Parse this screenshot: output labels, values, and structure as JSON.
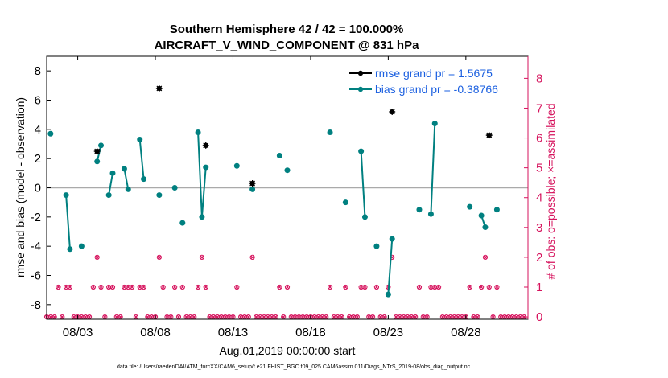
{
  "chart_data": {
    "type": "line",
    "title_line1": "Southern Hemisphere 42 / 42 = 100.000%",
    "title_line2": "AIRCRAFT_V_WIND_COMPONENT @ 831 hPa",
    "xlabel": "Aug.01,2019 00:00:00 start",
    "ylabel": "rmse and bias (model - observation)",
    "y2label": "# of obs: o=possible; ×=assimilated",
    "footnote": "data file: /Users/raeder/DAI/ATM_forcXX/CAM6_setup/f.e21.FHIST_BGC.f09_025.CAM6assim.011/Diags_NTrS_2019-08/obs_diag_output.nc",
    "xlim": [
      1.0,
      32.0
    ],
    "ylim": [
      -9,
      9
    ],
    "y2lim": [
      -0.0786,
      8.7381
    ],
    "x_ticks": [
      3,
      8,
      13,
      18,
      23,
      28
    ],
    "x_tick_labels": [
      "08/03",
      "08/08",
      "08/13",
      "08/18",
      "08/23",
      "08/28"
    ],
    "y_ticks": [
      -8,
      -6,
      -4,
      -2,
      0,
      2,
      4,
      6,
      8
    ],
    "y_tick_labels": [
      "-8",
      "-6",
      "-4",
      "-2",
      "0",
      "2",
      "4",
      "6",
      "8"
    ],
    "y2_ticks": [
      0,
      1,
      2,
      3,
      4,
      5,
      6,
      7,
      8
    ],
    "y2_tick_labels": [
      "0",
      "1",
      "2",
      "3",
      "4",
      "5",
      "6",
      "7",
      "8"
    ],
    "colors": {
      "rmse": "#000000",
      "bias": "#008080",
      "obs": "#d6135d",
      "zero": "#aaaaaa",
      "axis": "#000000",
      "right_axis": "#d6135d"
    },
    "legend": [
      {
        "name": "rmse",
        "label": "rmse grand pr = 1.5675"
      },
      {
        "name": "bias",
        "label": "bias grand pr = -0.38766"
      }
    ],
    "rmse_points": [
      [
        4.25,
        2.5
      ],
      [
        8.25,
        6.8
      ],
      [
        11.25,
        2.9
      ],
      [
        14.25,
        0.3
      ],
      [
        23.25,
        5.2
      ],
      [
        29.5,
        3.6
      ]
    ],
    "bias_segments": [
      [
        [
          1.25,
          3.7
        ]
      ],
      [
        [
          2.25,
          -0.5
        ],
        [
          2.5,
          -4.2
        ]
      ],
      [
        [
          3.25,
          -4.0
        ]
      ],
      [
        [
          4.25,
          1.8
        ],
        [
          4.5,
          2.9
        ]
      ],
      [
        [
          5.0,
          -0.5
        ],
        [
          5.25,
          1.0
        ]
      ],
      [
        [
          6.0,
          1.3
        ],
        [
          6.25,
          -0.1
        ]
      ],
      [
        [
          7.0,
          3.3
        ],
        [
          7.25,
          0.6
        ]
      ],
      [
        [
          8.25,
          -0.5
        ]
      ],
      [
        [
          9.25,
          0.0
        ]
      ],
      [
        [
          9.75,
          -2.4
        ]
      ],
      [
        [
          10.75,
          3.8
        ],
        [
          11.0,
          -2.0
        ],
        [
          11.25,
          1.4
        ]
      ],
      [
        [
          13.25,
          1.5
        ]
      ],
      [
        [
          14.25,
          -0.1
        ]
      ],
      [
        [
          16.0,
          2.2
        ]
      ],
      [
        [
          16.5,
          1.2
        ]
      ],
      [
        [
          19.25,
          3.8
        ]
      ],
      [
        [
          20.25,
          -1.0
        ]
      ],
      [
        [
          21.25,
          2.5
        ],
        [
          21.5,
          -2.0
        ]
      ],
      [
        [
          22.25,
          -4.0
        ]
      ],
      [
        [
          23.0,
          -7.3
        ],
        [
          23.25,
          -3.5
        ]
      ],
      [
        [
          25.0,
          -1.5
        ]
      ],
      [
        [
          25.75,
          -1.8
        ],
        [
          26.0,
          4.4
        ]
      ],
      [
        [
          28.25,
          -1.3
        ]
      ],
      [
        [
          29.0,
          -1.9
        ],
        [
          29.25,
          -2.7
        ]
      ],
      [
        [
          30.0,
          -1.5
        ]
      ]
    ],
    "obs_possible": [
      [
        1.0,
        0
      ],
      [
        1.25,
        0
      ],
      [
        1.5,
        0
      ],
      [
        1.75,
        1
      ],
      [
        2.0,
        0
      ],
      [
        2.25,
        1
      ],
      [
        2.5,
        1
      ],
      [
        2.75,
        0
      ],
      [
        3.0,
        0
      ],
      [
        3.25,
        0
      ],
      [
        3.5,
        0
      ],
      [
        3.75,
        0
      ],
      [
        4.0,
        1
      ],
      [
        4.25,
        2
      ],
      [
        4.5,
        1
      ],
      [
        4.75,
        0
      ],
      [
        5.0,
        1
      ],
      [
        5.25,
        1
      ],
      [
        5.5,
        0
      ],
      [
        5.75,
        0
      ],
      [
        6.0,
        1
      ],
      [
        6.25,
        1
      ],
      [
        6.5,
        1
      ],
      [
        6.75,
        0
      ],
      [
        7.0,
        1
      ],
      [
        7.25,
        1
      ],
      [
        7.5,
        0
      ],
      [
        7.75,
        0
      ],
      [
        8.0,
        0
      ],
      [
        8.25,
        2
      ],
      [
        8.5,
        1
      ],
      [
        8.75,
        0
      ],
      [
        9.0,
        0
      ],
      [
        9.25,
        1
      ],
      [
        9.5,
        0
      ],
      [
        9.75,
        1
      ],
      [
        10.0,
        0
      ],
      [
        10.25,
        0
      ],
      [
        10.5,
        0
      ],
      [
        10.75,
        1
      ],
      [
        11.0,
        2
      ],
      [
        11.25,
        1
      ],
      [
        11.5,
        0
      ],
      [
        11.75,
        0
      ],
      [
        12.0,
        0
      ],
      [
        12.25,
        0
      ],
      [
        12.5,
        0
      ],
      [
        12.75,
        0
      ],
      [
        13.0,
        0
      ],
      [
        13.25,
        1
      ],
      [
        13.5,
        0
      ],
      [
        13.75,
        0
      ],
      [
        14.0,
        0
      ],
      [
        14.25,
        2
      ],
      [
        14.5,
        0
      ],
      [
        14.75,
        0
      ],
      [
        15.0,
        0
      ],
      [
        15.25,
        0
      ],
      [
        15.5,
        0
      ],
      [
        15.75,
        0
      ],
      [
        16.0,
        1
      ],
      [
        16.25,
        0
      ],
      [
        16.5,
        1
      ],
      [
        16.75,
        0
      ],
      [
        17.0,
        0
      ],
      [
        17.25,
        0
      ],
      [
        17.5,
        0
      ],
      [
        17.75,
        0
      ],
      [
        18.0,
        0
      ],
      [
        18.25,
        0
      ],
      [
        18.5,
        0
      ],
      [
        18.75,
        0
      ],
      [
        19.0,
        0
      ],
      [
        19.25,
        1
      ],
      [
        19.5,
        0
      ],
      [
        19.75,
        0
      ],
      [
        20.0,
        0
      ],
      [
        20.25,
        1
      ],
      [
        20.5,
        0
      ],
      [
        20.75,
        0
      ],
      [
        21.0,
        0
      ],
      [
        21.25,
        1
      ],
      [
        21.5,
        1
      ],
      [
        21.75,
        0
      ],
      [
        22.0,
        0
      ],
      [
        22.25,
        1
      ],
      [
        22.5,
        0
      ],
      [
        22.75,
        0
      ],
      [
        23.0,
        1
      ],
      [
        23.25,
        2
      ],
      [
        23.5,
        0
      ],
      [
        23.75,
        0
      ],
      [
        24.0,
        0
      ],
      [
        24.25,
        0
      ],
      [
        24.5,
        0
      ],
      [
        24.75,
        0
      ],
      [
        25.0,
        1
      ],
      [
        25.25,
        0
      ],
      [
        25.5,
        0
      ],
      [
        25.75,
        1
      ],
      [
        26.0,
        1
      ],
      [
        26.25,
        1
      ],
      [
        26.5,
        0
      ],
      [
        26.75,
        0
      ],
      [
        27.0,
        0
      ],
      [
        27.25,
        0
      ],
      [
        27.5,
        0
      ],
      [
        27.75,
        0
      ],
      [
        28.0,
        0
      ],
      [
        28.25,
        1
      ],
      [
        28.5,
        0
      ],
      [
        28.75,
        0
      ],
      [
        29.0,
        1
      ],
      [
        29.25,
        2
      ],
      [
        29.5,
        1
      ],
      [
        29.75,
        0
      ],
      [
        30.0,
        1
      ],
      [
        30.25,
        0
      ],
      [
        30.5,
        0
      ],
      [
        30.75,
        0
      ],
      [
        31.0,
        0
      ],
      [
        31.25,
        0
      ],
      [
        31.5,
        0
      ],
      [
        31.75,
        0
      ]
    ]
  }
}
